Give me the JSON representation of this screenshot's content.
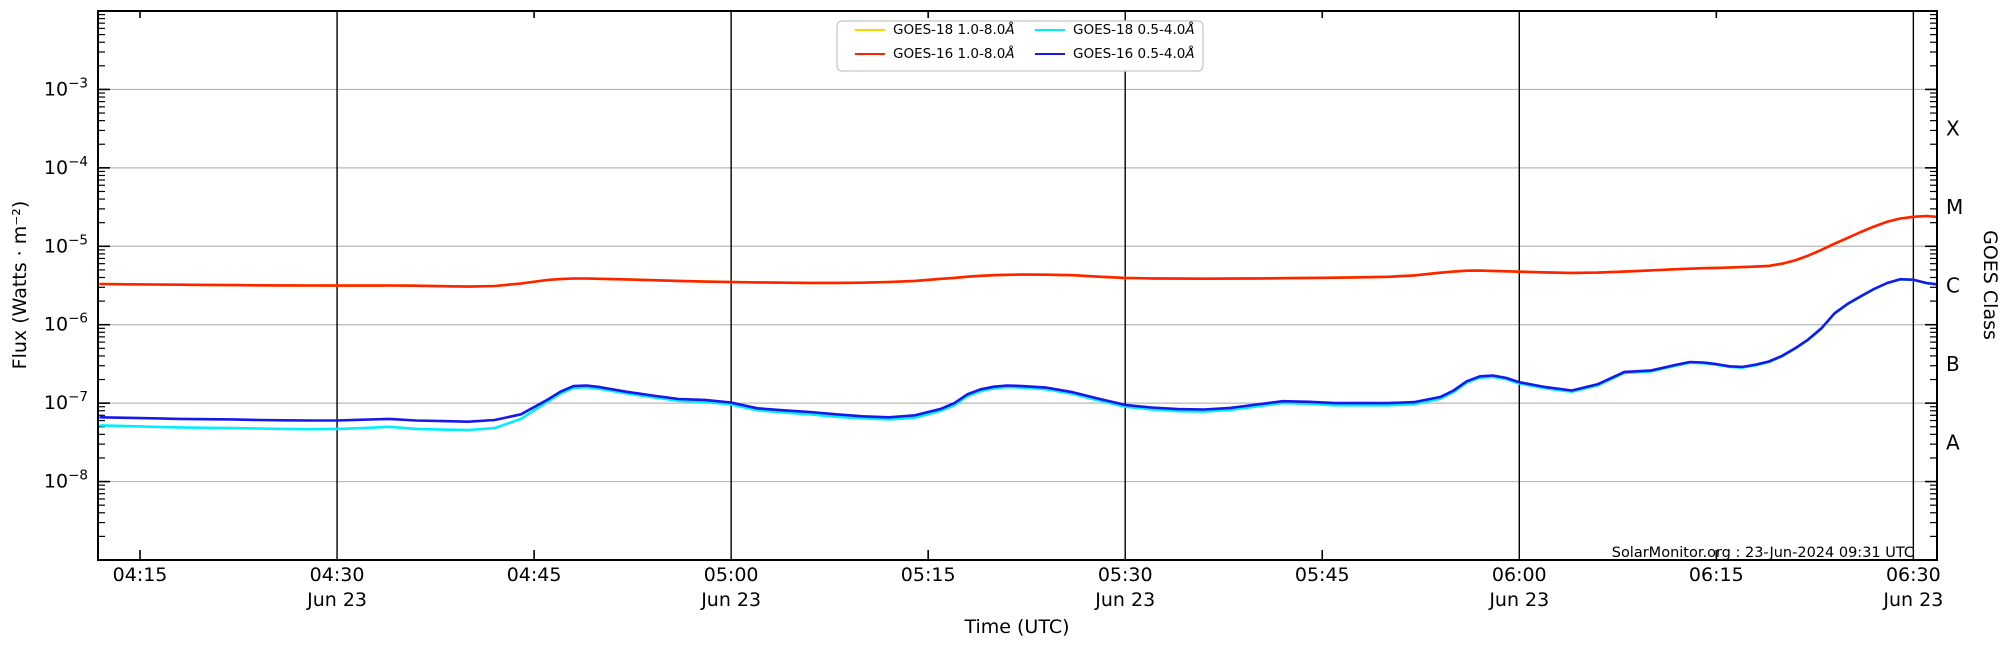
{
  "watermark": "SolarMonitor.org : 23-Jun-2024 09:31 UTC",
  "chart_data": {
    "type": "line",
    "title": "",
    "xlabel": "Time (UTC)",
    "ylabel_left": "Flux (Watts · m⁻²)",
    "ylabel_right": "GOES Class",
    "grid": {
      "horizontal_color": "#b8b8b8",
      "vertical_color": "#000000",
      "h_decades": [
        -3,
        -4,
        -5,
        -6,
        -7,
        -8
      ]
    },
    "x_axis": {
      "range_minutes": [
        251.8,
        391.8
      ],
      "date_label": "Jun 23",
      "ticks": [
        {
          "t": 255,
          "label": "04:15",
          "date": false
        },
        {
          "t": 270,
          "label": "04:30",
          "date": true
        },
        {
          "t": 285,
          "label": "04:45",
          "date": false
        },
        {
          "t": 300,
          "label": "05:00",
          "date": true
        },
        {
          "t": 315,
          "label": "05:15",
          "date": false
        },
        {
          "t": 330,
          "label": "05:30",
          "date": true
        },
        {
          "t": 345,
          "label": "05:45",
          "date": false
        },
        {
          "t": 360,
          "label": "06:00",
          "date": true
        },
        {
          "t": 375,
          "label": "06:15",
          "date": false
        },
        {
          "t": 390,
          "label": "06:30",
          "date": true
        }
      ]
    },
    "y_axis": {
      "log": true,
      "range_exp": [
        -9,
        -2
      ],
      "labeled_decades": [
        -3,
        -4,
        -5,
        -6,
        -7,
        -8
      ]
    },
    "goes_classes": [
      {
        "label": "X",
        "exp_center": -3.5
      },
      {
        "label": "M",
        "exp_center": -4.5
      },
      {
        "label": "C",
        "exp_center": -5.5
      },
      {
        "label": "B",
        "exp_center": -6.5
      },
      {
        "label": "A",
        "exp_center": -7.5
      }
    ],
    "legend": {
      "position": "top-center",
      "entries": [
        {
          "label": "GOES-18 1.0-8.0",
          "unit_symbol": "Å",
          "color": "#ffd400"
        },
        {
          "label": "GOES-16 1.0-8.0",
          "unit_symbol": "Å",
          "color": "#ff2200"
        },
        {
          "label": "GOES-18 0.5-4.0",
          "unit_symbol": "Å",
          "color": "#00eeff"
        },
        {
          "label": "GOES-16 0.5-4.0",
          "unit_symbol": "Å",
          "color": "#1818e8"
        }
      ]
    },
    "x_minutes": [
      252,
      254,
      256,
      258,
      260,
      262,
      264,
      266,
      268,
      270,
      272,
      274,
      276,
      278,
      280,
      282,
      284,
      286,
      287,
      288,
      289,
      290,
      292,
      294,
      296,
      298,
      300,
      302,
      304,
      306,
      308,
      310,
      312,
      314,
      316,
      317,
      318,
      319,
      320,
      321,
      322,
      324,
      326,
      328,
      330,
      332,
      334,
      336,
      338,
      340,
      342,
      344,
      346,
      348,
      350,
      352,
      354,
      355,
      356,
      357,
      358,
      359,
      360,
      362,
      364,
      366,
      368,
      370,
      372,
      373,
      374,
      375,
      376,
      377,
      378,
      379,
      380,
      381,
      382,
      383,
      384,
      385,
      386,
      387,
      388,
      389,
      390,
      391,
      392
    ],
    "series": [
      {
        "name": "GOES-18 1.0-8.0Å",
        "color": "#ffd400",
        "scale": 1e-06,
        "values": [
          3.3,
          3.28,
          3.26,
          3.24,
          3.22,
          3.2,
          3.18,
          3.17,
          3.16,
          3.15,
          3.15,
          3.16,
          3.14,
          3.1,
          3.06,
          3.12,
          3.35,
          3.72,
          3.82,
          3.88,
          3.88,
          3.85,
          3.78,
          3.7,
          3.62,
          3.55,
          3.5,
          3.46,
          3.43,
          3.41,
          3.41,
          3.43,
          3.5,
          3.62,
          3.85,
          3.95,
          4.1,
          4.2,
          4.28,
          4.33,
          4.36,
          4.34,
          4.28,
          4.1,
          3.95,
          3.9,
          3.87,
          3.86,
          3.87,
          3.9,
          3.92,
          3.95,
          3.98,
          4.02,
          4.08,
          4.25,
          4.6,
          4.75,
          4.88,
          4.9,
          4.86,
          4.8,
          4.74,
          4.65,
          4.58,
          4.62,
          4.75,
          4.92,
          5.1,
          5.18,
          5.25,
          5.3,
          5.36,
          5.42,
          5.5,
          5.62,
          6.0,
          6.6,
          7.6,
          9.0,
          10.8,
          12.8,
          15.2,
          17.8,
          20.5,
          22.6,
          23.8,
          24.3,
          23.5
        ]
      },
      {
        "name": "GOES-16 1.0-8.0Å",
        "color": "#ff2200",
        "scale": 1e-06,
        "values": [
          3.3,
          3.28,
          3.26,
          3.24,
          3.22,
          3.2,
          3.18,
          3.17,
          3.16,
          3.15,
          3.15,
          3.16,
          3.14,
          3.1,
          3.06,
          3.12,
          3.35,
          3.72,
          3.82,
          3.88,
          3.88,
          3.85,
          3.78,
          3.7,
          3.62,
          3.55,
          3.5,
          3.46,
          3.43,
          3.41,
          3.41,
          3.43,
          3.5,
          3.62,
          3.85,
          3.95,
          4.1,
          4.2,
          4.28,
          4.33,
          4.36,
          4.34,
          4.28,
          4.1,
          3.95,
          3.9,
          3.87,
          3.86,
          3.87,
          3.9,
          3.92,
          3.95,
          3.98,
          4.02,
          4.08,
          4.25,
          4.6,
          4.75,
          4.88,
          4.9,
          4.86,
          4.8,
          4.74,
          4.65,
          4.58,
          4.62,
          4.75,
          4.92,
          5.1,
          5.18,
          5.25,
          5.3,
          5.36,
          5.42,
          5.5,
          5.62,
          6.0,
          6.6,
          7.6,
          9.0,
          10.8,
          12.8,
          15.2,
          17.8,
          20.5,
          22.6,
          23.8,
          24.3,
          23.5
        ]
      },
      {
        "name": "GOES-18 0.5-4.0Å",
        "color": "#00eeff",
        "scale": 1e-08,
        "values": [
          5.2,
          5.1,
          5.0,
          4.9,
          4.85,
          4.8,
          4.75,
          4.7,
          4.65,
          4.7,
          4.8,
          5.0,
          4.7,
          4.6,
          4.55,
          4.8,
          6.3,
          10.3,
          13.2,
          15.6,
          15.9,
          15.2,
          13.3,
          11.9,
          10.7,
          10.4,
          9.6,
          8.1,
          7.6,
          7.2,
          6.7,
          6.4,
          6.2,
          6.5,
          8.0,
          9.4,
          12.3,
          14.2,
          15.4,
          16.0,
          15.8,
          15.0,
          13.1,
          10.8,
          9.0,
          8.3,
          7.9,
          7.8,
          8.2,
          9.1,
          10.0,
          9.8,
          9.4,
          9.4,
          9.4,
          9.7,
          11.4,
          13.8,
          18.2,
          21.1,
          21.6,
          20.2,
          17.8,
          15.4,
          14.0,
          16.9,
          24.3,
          25.3,
          30.2,
          32.8,
          32.3,
          30.9,
          28.9,
          28.4,
          30.4,
          33.4,
          39.4,
          49.3,
          64.2,
          89.0,
          138,
          183,
          228,
          283,
          338,
          378,
          373,
          338,
          323
        ]
      },
      {
        "name": "GOES-16 0.5-4.0Å",
        "color": "#1818e8",
        "scale": 1e-08,
        "values": [
          6.6,
          6.5,
          6.4,
          6.3,
          6.25,
          6.2,
          6.1,
          6.05,
          6.0,
          6.0,
          6.15,
          6.3,
          6.0,
          5.9,
          5.8,
          6.1,
          7.2,
          11.0,
          14.0,
          16.5,
          16.8,
          16.0,
          14.0,
          12.5,
          11.3,
          11.0,
          10.2,
          8.6,
          8.1,
          7.7,
          7.2,
          6.8,
          6.6,
          7.0,
          8.5,
          10.0,
          13.0,
          15.0,
          16.2,
          16.8,
          16.6,
          15.8,
          13.8,
          11.4,
          9.5,
          8.8,
          8.4,
          8.3,
          8.7,
          9.6,
          10.6,
          10.4,
          10.0,
          10.0,
          10.0,
          10.3,
          12.0,
          14.5,
          19.0,
          22.0,
          22.5,
          21.0,
          18.5,
          16.0,
          14.5,
          17.5,
          25.0,
          26.0,
          31.0,
          33.5,
          33.0,
          31.5,
          29.5,
          29.0,
          31.0,
          34.0,
          40.0,
          50.0,
          65.0,
          90.0,
          140,
          185,
          230,
          285,
          340,
          380,
          375,
          340,
          325
        ]
      }
    ]
  }
}
